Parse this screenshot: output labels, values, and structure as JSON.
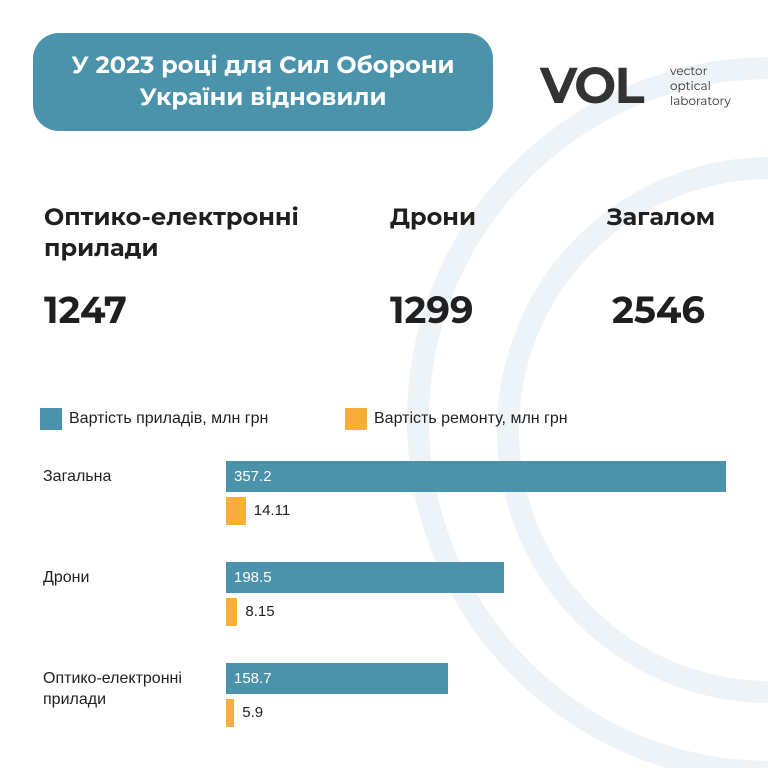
{
  "header": {
    "title_lines": [
      "У 2023 році для Сил Оборони",
      "України відновили"
    ],
    "logo": {
      "mark": "VOL",
      "lines": [
        "vector",
        "optical",
        "laboratory"
      ]
    }
  },
  "stats": [
    {
      "label": "Оптико-електронні прилади",
      "value": 1247
    },
    {
      "label": "Дрони",
      "value": 1299
    },
    {
      "label": "Загалом",
      "value": 2546
    }
  ],
  "chart_data": {
    "type": "bar",
    "orientation": "horizontal",
    "categories": [
      "Загальна",
      "Дрони",
      "Оптико-електронні прилади"
    ],
    "series": [
      {
        "name": "Вартість приладів, млн грн",
        "color": "#4b92ab",
        "values": [
          357.2,
          198.5,
          158.7
        ]
      },
      {
        "name": "Вартість ремонту, млн грн",
        "color": "#f9ad3b",
        "values": [
          14.11,
          8.15,
          5.9
        ]
      }
    ],
    "xlim": [
      0,
      360
    ]
  }
}
